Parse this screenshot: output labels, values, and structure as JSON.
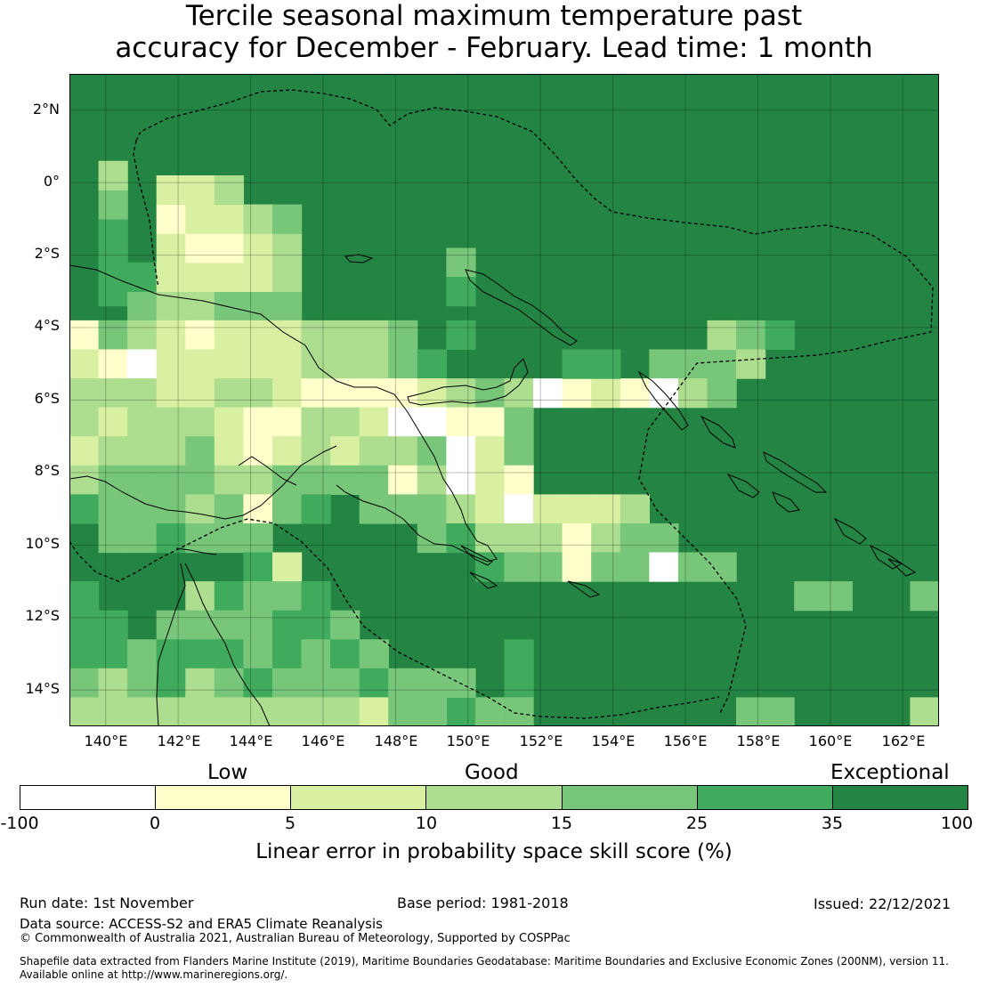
{
  "title": {
    "line1": "Tercile seasonal maximum temperature past",
    "line2": "accuracy for December - February. Lead time: 1 month"
  },
  "map": {
    "lat_range": [
      -15,
      3
    ],
    "lon_range": [
      139,
      163
    ],
    "lat_labels": [
      "2°N",
      "0°",
      "2°S",
      "4°S",
      "6°S",
      "8°S",
      "10°S",
      "12°S",
      "14°S"
    ],
    "lon_labels": [
      "140°E",
      "142°E",
      "144°E",
      "146°E",
      "148°E",
      "150°E",
      "152°E",
      "154°E",
      "156°E",
      "158°E",
      "160°E",
      "162°E"
    ],
    "background_category": 6,
    "cell_categories": [
      [
        0.8,
        -3,
        5
      ],
      [
        0.8,
        -2.2,
        5
      ],
      [
        0.8,
        -1.4,
        5
      ],
      [
        0.8,
        -0.6,
        4
      ],
      [
        0.8,
        0.2,
        3
      ],
      [
        1.6,
        -3.4,
        4
      ],
      [
        1.6,
        -2.6,
        5
      ],
      [
        2.4,
        -3.4,
        3
      ],
      [
        2.4,
        -2.6,
        2
      ],
      [
        2.4,
        -1.8,
        2
      ],
      [
        2.4,
        -1,
        1
      ],
      [
        2.4,
        -0.2,
        2
      ],
      [
        3.2,
        -3.4,
        3
      ],
      [
        3.2,
        -2.6,
        2
      ],
      [
        3.2,
        -1.8,
        1
      ],
      [
        3.2,
        -1,
        2
      ],
      [
        3.2,
        -0.2,
        2
      ],
      [
        4,
        -3.4,
        4
      ],
      [
        4,
        -2.6,
        2
      ],
      [
        4,
        -1.8,
        1
      ],
      [
        4,
        -1,
        2
      ],
      [
        4,
        -0.2,
        3
      ],
      [
        4.8,
        -3.4,
        4
      ],
      [
        4.8,
        -2.6,
        2
      ],
      [
        4.8,
        -1.8,
        2
      ],
      [
        4.8,
        -1,
        3
      ],
      [
        5.6,
        -4.2,
        3
      ],
      [
        5.6,
        -3.4,
        4
      ],
      [
        5.6,
        -2.6,
        3
      ],
      [
        5.6,
        -1.8,
        3
      ],
      [
        5.6,
        -1,
        4
      ],
      [
        0,
        -4.2,
        1
      ],
      [
        0,
        -5,
        2
      ],
      [
        0,
        -5.8,
        3
      ],
      [
        0,
        -6.6,
        3
      ],
      [
        0,
        -7.4,
        2
      ],
      [
        0,
        -8.2,
        3
      ],
      [
        0,
        -9,
        5
      ],
      [
        0.8,
        -4.2,
        4
      ],
      [
        0.8,
        -5,
        1
      ],
      [
        0.8,
        -5.8,
        3
      ],
      [
        0.8,
        -6.6,
        2
      ],
      [
        0.8,
        -7.4,
        3
      ],
      [
        0.8,
        -8.2,
        4
      ],
      [
        0.8,
        -9,
        4
      ],
      [
        0.8,
        -9.8,
        4
      ],
      [
        1.6,
        -4.2,
        3
      ],
      [
        1.6,
        -5,
        0
      ],
      [
        1.6,
        -5.8,
        3
      ],
      [
        1.6,
        -6.6,
        3
      ],
      [
        1.6,
        -7.4,
        3
      ],
      [
        1.6,
        -8.2,
        4
      ],
      [
        1.6,
        -9,
        4
      ],
      [
        1.6,
        -9.8,
        4
      ],
      [
        2.4,
        -4.2,
        2
      ],
      [
        2.4,
        -5,
        2
      ],
      [
        2.4,
        -5.8,
        2
      ],
      [
        2.4,
        -6.6,
        3
      ],
      [
        2.4,
        -7.4,
        3
      ],
      [
        2.4,
        -8.2,
        4
      ],
      [
        2.4,
        -9,
        4
      ],
      [
        2.4,
        -9.8,
        5
      ],
      [
        3.2,
        -4.2,
        1
      ],
      [
        3.2,
        -5,
        2
      ],
      [
        3.2,
        -5.8,
        2
      ],
      [
        3.2,
        -6.6,
        3
      ],
      [
        3.2,
        -7.4,
        4
      ],
      [
        3.2,
        -8.2,
        4
      ],
      [
        3.2,
        -9,
        3
      ],
      [
        3.2,
        -9.8,
        4
      ],
      [
        4,
        -4.2,
        2
      ],
      [
        4,
        -5,
        2
      ],
      [
        4,
        -5.8,
        3
      ],
      [
        4,
        -6.6,
        2
      ],
      [
        4,
        -7.4,
        2
      ],
      [
        4,
        -8.2,
        3
      ],
      [
        4,
        -9,
        4
      ],
      [
        4,
        -9.8,
        4
      ],
      [
        4.8,
        -4.2,
        2
      ],
      [
        4.8,
        -5,
        2
      ],
      [
        4.8,
        -5.8,
        3
      ],
      [
        4.8,
        -6.6,
        1
      ],
      [
        4.8,
        -7.4,
        1
      ],
      [
        4.8,
        -8.2,
        3
      ],
      [
        4.8,
        -9,
        1
      ],
      [
        4.8,
        -9.8,
        4
      ],
      [
        5.6,
        -4.2,
        2
      ],
      [
        5.6,
        -5,
        2
      ],
      [
        5.6,
        -5.8,
        2
      ],
      [
        5.6,
        -6.6,
        1
      ],
      [
        5.6,
        -7.4,
        2
      ],
      [
        5.6,
        -8.2,
        4
      ],
      [
        5.6,
        -9,
        4
      ],
      [
        6.4,
        -4.2,
        3
      ],
      [
        6.4,
        -5,
        3
      ],
      [
        6.4,
        -5.8,
        1
      ],
      [
        6.4,
        -6.6,
        3
      ],
      [
        6.4,
        -7.4,
        3
      ],
      [
        6.4,
        -8.2,
        4
      ],
      [
        6.4,
        -9,
        5
      ],
      [
        7.2,
        -4.2,
        3
      ],
      [
        7.2,
        -5,
        3
      ],
      [
        7.2,
        -5.8,
        1
      ],
      [
        7.2,
        -6.6,
        3
      ],
      [
        7.2,
        -7.4,
        2
      ],
      [
        7.2,
        -8.2,
        4
      ],
      [
        8,
        -4.2,
        3
      ],
      [
        8,
        -5,
        3
      ],
      [
        8,
        -5.8,
        1
      ],
      [
        8,
        -6.6,
        2
      ],
      [
        8,
        -7.4,
        3
      ],
      [
        8,
        -8.2,
        4
      ],
      [
        8,
        -9,
        4
      ],
      [
        8.8,
        -4.2,
        4
      ],
      [
        8.8,
        -5,
        4
      ],
      [
        8.8,
        -5.8,
        1
      ],
      [
        8.8,
        -6.6,
        0
      ],
      [
        8.8,
        -7.4,
        3
      ],
      [
        8.8,
        -8.2,
        1
      ],
      [
        8.8,
        -9,
        4
      ],
      [
        9.6,
        -5,
        5
      ],
      [
        9.6,
        -5.8,
        2
      ],
      [
        9.6,
        -6.6,
        0
      ],
      [
        9.6,
        -7.4,
        4
      ],
      [
        9.6,
        -8.2,
        3
      ],
      [
        9.6,
        -9,
        4
      ],
      [
        9.6,
        -9.8,
        4
      ],
      [
        10.4,
        -5.8,
        3
      ],
      [
        10.4,
        -6.6,
        1
      ],
      [
        10.4,
        -7.4,
        0
      ],
      [
        10.4,
        -8.2,
        0
      ],
      [
        10.4,
        -9,
        3
      ],
      [
        10.4,
        -9.8,
        5
      ],
      [
        11.2,
        -5.8,
        4
      ],
      [
        11.2,
        -6.6,
        1
      ],
      [
        11.2,
        -7.4,
        2
      ],
      [
        11.2,
        -8.2,
        2
      ],
      [
        11.2,
        -9,
        2
      ],
      [
        11.2,
        -9.8,
        3
      ],
      [
        11.2,
        -10.6,
        5
      ],
      [
        12,
        -5.8,
        3
      ],
      [
        12,
        -6.6,
        4
      ],
      [
        12,
        -7.4,
        4
      ],
      [
        12,
        -8.2,
        1
      ],
      [
        12,
        -9,
        0
      ],
      [
        12,
        -9.8,
        3
      ],
      [
        12,
        -10.6,
        4
      ],
      [
        12.8,
        -5.8,
        0
      ],
      [
        12.8,
        -9,
        2
      ],
      [
        12.8,
        -9.8,
        3
      ],
      [
        12.8,
        -10.6,
        4
      ],
      [
        13.6,
        -5.8,
        1
      ],
      [
        13.6,
        -9,
        2
      ],
      [
        13.6,
        -9.8,
        1
      ],
      [
        13.6,
        -10.6,
        1
      ],
      [
        14.4,
        -5.8,
        2
      ],
      [
        14.4,
        -9,
        2
      ],
      [
        14.4,
        -9.8,
        3
      ],
      [
        14.4,
        -10.6,
        4
      ],
      [
        15.2,
        -5.8,
        1
      ],
      [
        15.2,
        -9,
        3
      ],
      [
        15.2,
        -9.8,
        4
      ],
      [
        15.2,
        -10.6,
        4
      ],
      [
        16,
        -5,
        4
      ],
      [
        16,
        -5.8,
        0
      ],
      [
        16,
        -9.8,
        4
      ],
      [
        16,
        -10.6,
        0
      ],
      [
        16.8,
        -5,
        4
      ],
      [
        16.8,
        -5.8,
        3
      ],
      [
        16.8,
        -10.6,
        4
      ],
      [
        17.6,
        -5,
        4
      ],
      [
        17.6,
        -5.8,
        4
      ],
      [
        17.6,
        -4.2,
        3
      ],
      [
        17.6,
        -10.6,
        4
      ],
      [
        18.4,
        -4.2,
        4
      ],
      [
        18.4,
        -5,
        3
      ],
      [
        10.4,
        -2.2,
        4
      ],
      [
        10.4,
        -3,
        5
      ],
      [
        10.4,
        -4.2,
        5
      ],
      [
        13.6,
        -5,
        5
      ],
      [
        14.4,
        -5,
        5
      ],
      [
        19.2,
        -4.2,
        5
      ],
      [
        20,
        -11.4,
        4
      ],
      [
        20.8,
        -11.4,
        4
      ],
      [
        24,
        -6.6,
        4
      ],
      [
        24.8,
        -6.6,
        4
      ],
      [
        27.2,
        -8.2,
        4
      ],
      [
        28,
        -8.2,
        4
      ],
      [
        28,
        -7.4,
        4
      ],
      [
        28.8,
        -7.4,
        4
      ],
      [
        29.6,
        -8.2,
        4
      ],
      [
        30.4,
        -8.2,
        4
      ],
      [
        30.4,
        -9,
        4
      ],
      [
        31.2,
        -9,
        4
      ],
      [
        31.2,
        -9.8,
        4
      ],
      [
        30.4,
        -9.8,
        2
      ],
      [
        31.2,
        -9.8,
        2
      ],
      [
        32,
        -9,
        2
      ],
      [
        32,
        -9.8,
        4
      ],
      [
        32.8,
        -9.8,
        4
      ],
      [
        32.8,
        -10.6,
        4
      ],
      [
        33.6,
        -10.6,
        1
      ],
      [
        34.4,
        -10.6,
        4
      ],
      [
        35.2,
        -11.4,
        4
      ],
      [
        33.6,
        -13,
        5
      ],
      [
        34.4,
        -13,
        5
      ],
      [
        12,
        -13,
        5
      ],
      [
        12,
        -13.8,
        5
      ],
      [
        12,
        -14.6,
        4
      ],
      [
        18.4,
        -14.6,
        4
      ],
      [
        19.2,
        -14.6,
        4
      ],
      [
        10.4,
        -14.6,
        5
      ],
      [
        11.2,
        -14.6,
        5
      ],
      [
        0,
        -11.4,
        5
      ],
      [
        0,
        -12.2,
        5
      ],
      [
        0,
        -13,
        5
      ],
      [
        0,
        -13.8,
        4
      ],
      [
        0,
        -14.6,
        3
      ],
      [
        0.8,
        -12.2,
        5
      ],
      [
        0.8,
        -13,
        5
      ],
      [
        0.8,
        -13.8,
        3
      ],
      [
        0.8,
        -14.6,
        3
      ],
      [
        1.6,
        -13,
        4
      ],
      [
        1.6,
        -13.8,
        4
      ],
      [
        1.6,
        -14.6,
        3
      ],
      [
        2.4,
        -12.2,
        4
      ],
      [
        2.4,
        -13,
        5
      ],
      [
        2.4,
        -13.8,
        5
      ],
      [
        2.4,
        -14.6,
        3
      ],
      [
        3.2,
        -11.4,
        3
      ],
      [
        3.2,
        -12.2,
        4
      ],
      [
        3.2,
        -13,
        5
      ],
      [
        3.2,
        -13.8,
        3
      ],
      [
        3.2,
        -14.6,
        3
      ],
      [
        4,
        -11.4,
        5
      ],
      [
        4,
        -12.2,
        4
      ],
      [
        4,
        -13,
        5
      ],
      [
        4,
        -13.8,
        4
      ],
      [
        4,
        -14.6,
        3
      ],
      [
        4.8,
        -10.6,
        5
      ],
      [
        4.8,
        -11.4,
        4
      ],
      [
        4.8,
        -12.2,
        4
      ],
      [
        4.8,
        -13,
        4
      ],
      [
        4.8,
        -13.8,
        5
      ],
      [
        4.8,
        -14.6,
        3
      ],
      [
        5.6,
        -10.6,
        2
      ],
      [
        5.6,
        -11.4,
        4
      ],
      [
        5.6,
        -12.2,
        5
      ],
      [
        5.6,
        -13,
        5
      ],
      [
        5.6,
        -13.8,
        4
      ],
      [
        5.6,
        -14.6,
        3
      ],
      [
        6.4,
        -11.4,
        5
      ],
      [
        6.4,
        -12.2,
        5
      ],
      [
        6.4,
        -13,
        4
      ],
      [
        6.4,
        -13.8,
        4
      ],
      [
        6.4,
        -14.6,
        3
      ],
      [
        7.2,
        -12.2,
        4
      ],
      [
        7.2,
        -13,
        5
      ],
      [
        7.2,
        -13.8,
        4
      ],
      [
        7.2,
        -14.6,
        3
      ],
      [
        8,
        -13,
        4
      ],
      [
        8,
        -13.8,
        5
      ],
      [
        8,
        -14.6,
        2
      ],
      [
        8.8,
        -13.8,
        4
      ],
      [
        8.8,
        -14.6,
        4
      ],
      [
        9.6,
        -13.8,
        4
      ],
      [
        9.6,
        -14.6,
        4
      ],
      [
        10.4,
        -13.8,
        4
      ],
      [
        11.2,
        -14.6,
        4
      ],
      [
        23.2,
        -14.6,
        3
      ],
      [
        23.2,
        -15.4,
        3
      ],
      [
        23.2,
        -11.4,
        4
      ]
    ]
  },
  "categories": {
    "low": "Low",
    "good": "Good",
    "exceptional": "Exceptional"
  },
  "colorbar": {
    "ticks": [
      "-100",
      "0",
      "5",
      "10",
      "15",
      "25",
      "35",
      "100"
    ],
    "colors": [
      "#ffffff",
      "#ffffcc",
      "#d9f0a3",
      "#addd8e",
      "#78c679",
      "#41ab5d",
      "#238443"
    ],
    "label": "Linear error in probability space skill score (%)"
  },
  "footer": {
    "run_date": "Run date: 1st November",
    "base_period": "Base period: 1981-2018",
    "issued": "Issued: 22/12/2021",
    "data_source": "Data source: ACCESS-S2 and ERA5 Climate Reanalysis",
    "copyright": "© Commonwealth of Australia 2021, Australian Bureau of Meteorology, Supported by COSPPac",
    "shapefile_line1": "Shapefile data extracted from Flanders Marine Institute (2019), Maritime Boundaries Geodatabase: Maritime Boundaries and Exclusive Economic Zones (200NM), version 11.",
    "shapefile_line2": "Available online at http://www.marineregions.org/."
  }
}
